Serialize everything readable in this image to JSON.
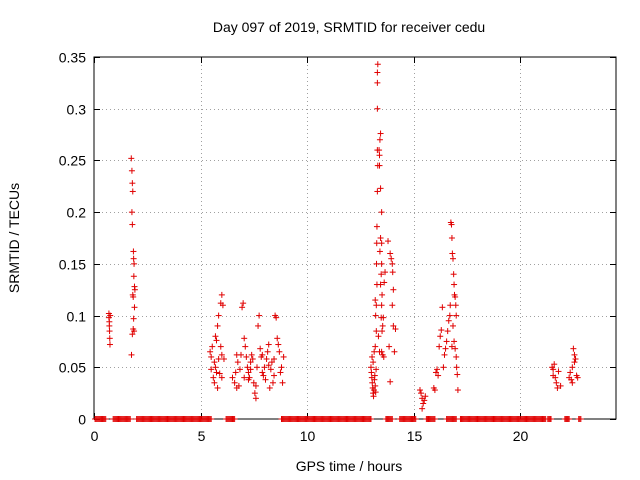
{
  "chart_data": {
    "type": "scatter",
    "title": "Day 097 of 2019, SRMTID for receiver cedu",
    "xlabel": "GPS time / hours",
    "ylabel": "SRMTID / TECUs",
    "xlim": [
      0,
      24.5
    ],
    "ylim": [
      0,
      0.35
    ],
    "xticks": [
      0,
      5,
      10,
      15,
      20
    ],
    "xtick_labels": [
      "0",
      "5",
      "10",
      "15",
      "20"
    ],
    "yticks": [
      0,
      0.05,
      0.1,
      0.15,
      0.2,
      0.25,
      0.3,
      0.35
    ],
    "ytick_labels": [
      "0",
      "0.05",
      "0.1",
      "0.15",
      "0.2",
      "0.25",
      "0.3",
      "0.35"
    ],
    "grid": true,
    "marker": "+",
    "color": "#e00000",
    "series": [
      {
        "name": "SRMTID",
        "points": [
          [
            0.7,
            0.102
          ],
          [
            0.7,
            0.098
          ],
          [
            0.72,
            0.094
          ],
          [
            0.72,
            0.09
          ],
          [
            0.73,
            0.085
          ],
          [
            0.74,
            0.078
          ],
          [
            0.75,
            0.072
          ],
          [
            0.76,
            0.1
          ],
          [
            1.75,
            0.252
          ],
          [
            1.78,
            0.24
          ],
          [
            1.8,
            0.228
          ],
          [
            1.82,
            0.22
          ],
          [
            1.78,
            0.2
          ],
          [
            1.8,
            0.188
          ],
          [
            1.85,
            0.162
          ],
          [
            1.86,
            0.155
          ],
          [
            1.88,
            0.15
          ],
          [
            1.87,
            0.138
          ],
          [
            1.9,
            0.128
          ],
          [
            1.82,
            0.12
          ],
          [
            1.84,
            0.118
          ],
          [
            1.9,
            0.108
          ],
          [
            1.86,
            0.097
          ],
          [
            1.84,
            0.087
          ],
          [
            1.8,
            0.082
          ],
          [
            1.88,
            0.085
          ],
          [
            1.76,
            0.062
          ],
          [
            1.92,
            0.125
          ],
          [
            5.45,
            0.065
          ],
          [
            5.5,
            0.06
          ],
          [
            5.55,
            0.07
          ],
          [
            5.5,
            0.048
          ],
          [
            5.6,
            0.04
          ],
          [
            5.65,
            0.035
          ],
          [
            5.7,
            0.05
          ],
          [
            5.75,
            0.045
          ],
          [
            5.8,
            0.03
          ],
          [
            5.85,
            0.058
          ],
          [
            5.9,
            0.044
          ],
          [
            5.7,
            0.08
          ],
          [
            5.75,
            0.076
          ],
          [
            5.8,
            0.09
          ],
          [
            5.85,
            0.1
          ],
          [
            5.95,
            0.112
          ],
          [
            6.0,
            0.12
          ],
          [
            6.05,
            0.11
          ],
          [
            5.95,
            0.07
          ],
          [
            6.0,
            0.062
          ],
          [
            6.1,
            0.058
          ],
          [
            6.0,
            0.04
          ],
          [
            5.65,
            0.055
          ],
          [
            6.5,
            0.04
          ],
          [
            6.6,
            0.035
          ],
          [
            6.65,
            0.045
          ],
          [
            6.7,
            0.03
          ],
          [
            6.75,
            0.055
          ],
          [
            6.8,
            0.032
          ],
          [
            6.85,
            0.048
          ],
          [
            6.9,
            0.062
          ],
          [
            6.95,
            0.108
          ],
          [
            7.0,
            0.112
          ],
          [
            7.05,
            0.078
          ],
          [
            7.1,
            0.07
          ],
          [
            7.15,
            0.06
          ],
          [
            7.2,
            0.05
          ],
          [
            7.25,
            0.045
          ],
          [
            7.3,
            0.04
          ],
          [
            7.35,
            0.055
          ],
          [
            7.4,
            0.062
          ],
          [
            7.45,
            0.058
          ],
          [
            7.5,
            0.035
          ],
          [
            7.55,
            0.025
          ],
          [
            7.6,
            0.02
          ],
          [
            7.65,
            0.05
          ],
          [
            7.7,
            0.09
          ],
          [
            7.75,
            0.1
          ],
          [
            7.8,
            0.068
          ],
          [
            7.85,
            0.06
          ],
          [
            7.9,
            0.045
          ],
          [
            7.95,
            0.042
          ],
          [
            8.0,
            0.05
          ],
          [
            8.05,
            0.038
          ],
          [
            8.1,
            0.058
          ],
          [
            8.15,
            0.065
          ],
          [
            8.2,
            0.072
          ],
          [
            8.25,
            0.03
          ],
          [
            8.3,
            0.048
          ],
          [
            8.35,
            0.055
          ],
          [
            8.4,
            0.035
          ],
          [
            8.45,
            0.042
          ],
          [
            8.5,
            0.1
          ],
          [
            8.55,
            0.098
          ],
          [
            8.6,
            0.078
          ],
          [
            8.65,
            0.072
          ],
          [
            8.7,
            0.065
          ],
          [
            8.75,
            0.045
          ],
          [
            8.8,
            0.05
          ],
          [
            8.85,
            0.035
          ],
          [
            8.9,
            0.06
          ],
          [
            7.25,
            0.038
          ],
          [
            7.35,
            0.048
          ],
          [
            7.6,
            0.032
          ],
          [
            7.9,
            0.062
          ],
          [
            8.2,
            0.052
          ],
          [
            8.45,
            0.058
          ],
          [
            6.7,
            0.062
          ],
          [
            7.05,
            0.04
          ],
          [
            13.0,
            0.05
          ],
          [
            13.02,
            0.045
          ],
          [
            13.04,
            0.04
          ],
          [
            13.06,
            0.035
          ],
          [
            13.08,
            0.03
          ],
          [
            13.1,
            0.025
          ],
          [
            13.12,
            0.022
          ],
          [
            13.14,
            0.028
          ],
          [
            13.16,
            0.038
          ],
          [
            13.18,
            0.042
          ],
          [
            13.2,
            0.032
          ],
          [
            13.22,
            0.026
          ],
          [
            13.24,
            0.048
          ],
          [
            13.1,
            0.055
          ],
          [
            13.05,
            0.06
          ],
          [
            13.15,
            0.065
          ],
          [
            13.2,
            0.07
          ],
          [
            13.25,
            0.085
          ],
          [
            13.25,
            0.11
          ],
          [
            13.28,
            0.13
          ],
          [
            13.26,
            0.15
          ],
          [
            13.27,
            0.17
          ],
          [
            13.28,
            0.186
          ],
          [
            13.3,
            0.22
          ],
          [
            13.32,
            0.245
          ],
          [
            13.3,
            0.26
          ],
          [
            13.3,
            0.3
          ],
          [
            13.3,
            0.325
          ],
          [
            13.3,
            0.335
          ],
          [
            13.32,
            0.343
          ],
          [
            13.38,
            0.26
          ],
          [
            13.4,
            0.245
          ],
          [
            13.42,
            0.27
          ],
          [
            13.45,
            0.276
          ],
          [
            13.4,
            0.255
          ],
          [
            13.45,
            0.223
          ],
          [
            13.5,
            0.2
          ],
          [
            13.45,
            0.175
          ],
          [
            13.5,
            0.17
          ],
          [
            13.42,
            0.162
          ],
          [
            13.5,
            0.15
          ],
          [
            13.48,
            0.14
          ],
          [
            13.45,
            0.13
          ],
          [
            13.52,
            0.12
          ],
          [
            13.5,
            0.11
          ],
          [
            13.48,
            0.098
          ],
          [
            13.55,
            0.09
          ],
          [
            13.52,
            0.085
          ],
          [
            13.5,
            0.065
          ],
          [
            13.55,
            0.062
          ],
          [
            13.6,
            0.06
          ],
          [
            13.35,
            0.08
          ],
          [
            13.4,
            0.065
          ],
          [
            13.58,
            0.098
          ],
          [
            13.62,
            0.132
          ],
          [
            13.66,
            0.142
          ],
          [
            13.8,
            0.172
          ],
          [
            13.9,
            0.16
          ],
          [
            13.95,
            0.155
          ],
          [
            14.0,
            0.15
          ],
          [
            14.02,
            0.142
          ],
          [
            14.05,
            0.125
          ],
          [
            14.0,
            0.11
          ],
          [
            14.05,
            0.09
          ],
          [
            13.85,
            0.07
          ],
          [
            13.9,
            0.036
          ],
          [
            14.1,
            0.065
          ],
          [
            14.15,
            0.087
          ],
          [
            13.2,
            0.115
          ],
          [
            13.22,
            0.1
          ],
          [
            15.3,
            0.028
          ],
          [
            15.35,
            0.025
          ],
          [
            15.4,
            0.02
          ],
          [
            15.45,
            0.015
          ],
          [
            15.4,
            0.01
          ],
          [
            15.5,
            0.018
          ],
          [
            15.55,
            0.022
          ],
          [
            15.95,
            0.03
          ],
          [
            16.0,
            0.028
          ],
          [
            16.05,
            0.045
          ],
          [
            16.1,
            0.048
          ],
          [
            16.15,
            0.042
          ],
          [
            16.2,
            0.07
          ],
          [
            16.25,
            0.08
          ],
          [
            16.3,
            0.086
          ],
          [
            16.35,
            0.108
          ],
          [
            16.4,
            0.05
          ],
          [
            16.45,
            0.062
          ],
          [
            16.5,
            0.068
          ],
          [
            16.55,
            0.075
          ],
          [
            16.6,
            0.085
          ],
          [
            16.65,
            0.095
          ],
          [
            16.7,
            0.1
          ],
          [
            16.75,
            0.19
          ],
          [
            16.78,
            0.188
          ],
          [
            16.8,
            0.175
          ],
          [
            16.82,
            0.16
          ],
          [
            16.85,
            0.155
          ],
          [
            16.88,
            0.14
          ],
          [
            16.9,
            0.13
          ],
          [
            16.92,
            0.12
          ],
          [
            16.95,
            0.118
          ],
          [
            16.98,
            0.11
          ],
          [
            17.0,
            0.1
          ],
          [
            16.85,
            0.09
          ],
          [
            16.9,
            0.075
          ],
          [
            16.95,
            0.068
          ],
          [
            17.0,
            0.06
          ],
          [
            17.02,
            0.05
          ],
          [
            17.05,
            0.043
          ],
          [
            17.08,
            0.028
          ],
          [
            16.72,
            0.11
          ],
          [
            16.8,
            0.07
          ],
          [
            21.5,
            0.05
          ],
          [
            21.55,
            0.048
          ],
          [
            21.6,
            0.053
          ],
          [
            21.65,
            0.04
          ],
          [
            21.7,
            0.035
          ],
          [
            21.75,
            0.03
          ],
          [
            21.8,
            0.046
          ],
          [
            21.55,
            0.042
          ],
          [
            21.9,
            0.032
          ],
          [
            22.3,
            0.04
          ],
          [
            22.35,
            0.045
          ],
          [
            22.4,
            0.038
          ],
          [
            22.45,
            0.05
          ],
          [
            22.5,
            0.068
          ],
          [
            22.55,
            0.062
          ],
          [
            22.6,
            0.058
          ],
          [
            22.65,
            0.042
          ],
          [
            22.45,
            0.035
          ],
          [
            22.55,
            0.055
          ],
          [
            22.7,
            0.04
          ]
        ],
        "zero_segments": [
          [
            0.05,
            0.55
          ],
          [
            0.9,
            1.7
          ],
          [
            2.0,
            5.5
          ],
          [
            6.2,
            6.6
          ],
          [
            8.8,
            13.0
          ],
          [
            13.7,
            14.0
          ],
          [
            14.35,
            15.1
          ],
          [
            15.6,
            16.0
          ],
          [
            16.55,
            17.0
          ],
          [
            17.2,
            21.2
          ],
          [
            21.3,
            21.45
          ],
          [
            22.1,
            22.3
          ],
          [
            22.75,
            22.85
          ]
        ]
      }
    ]
  }
}
